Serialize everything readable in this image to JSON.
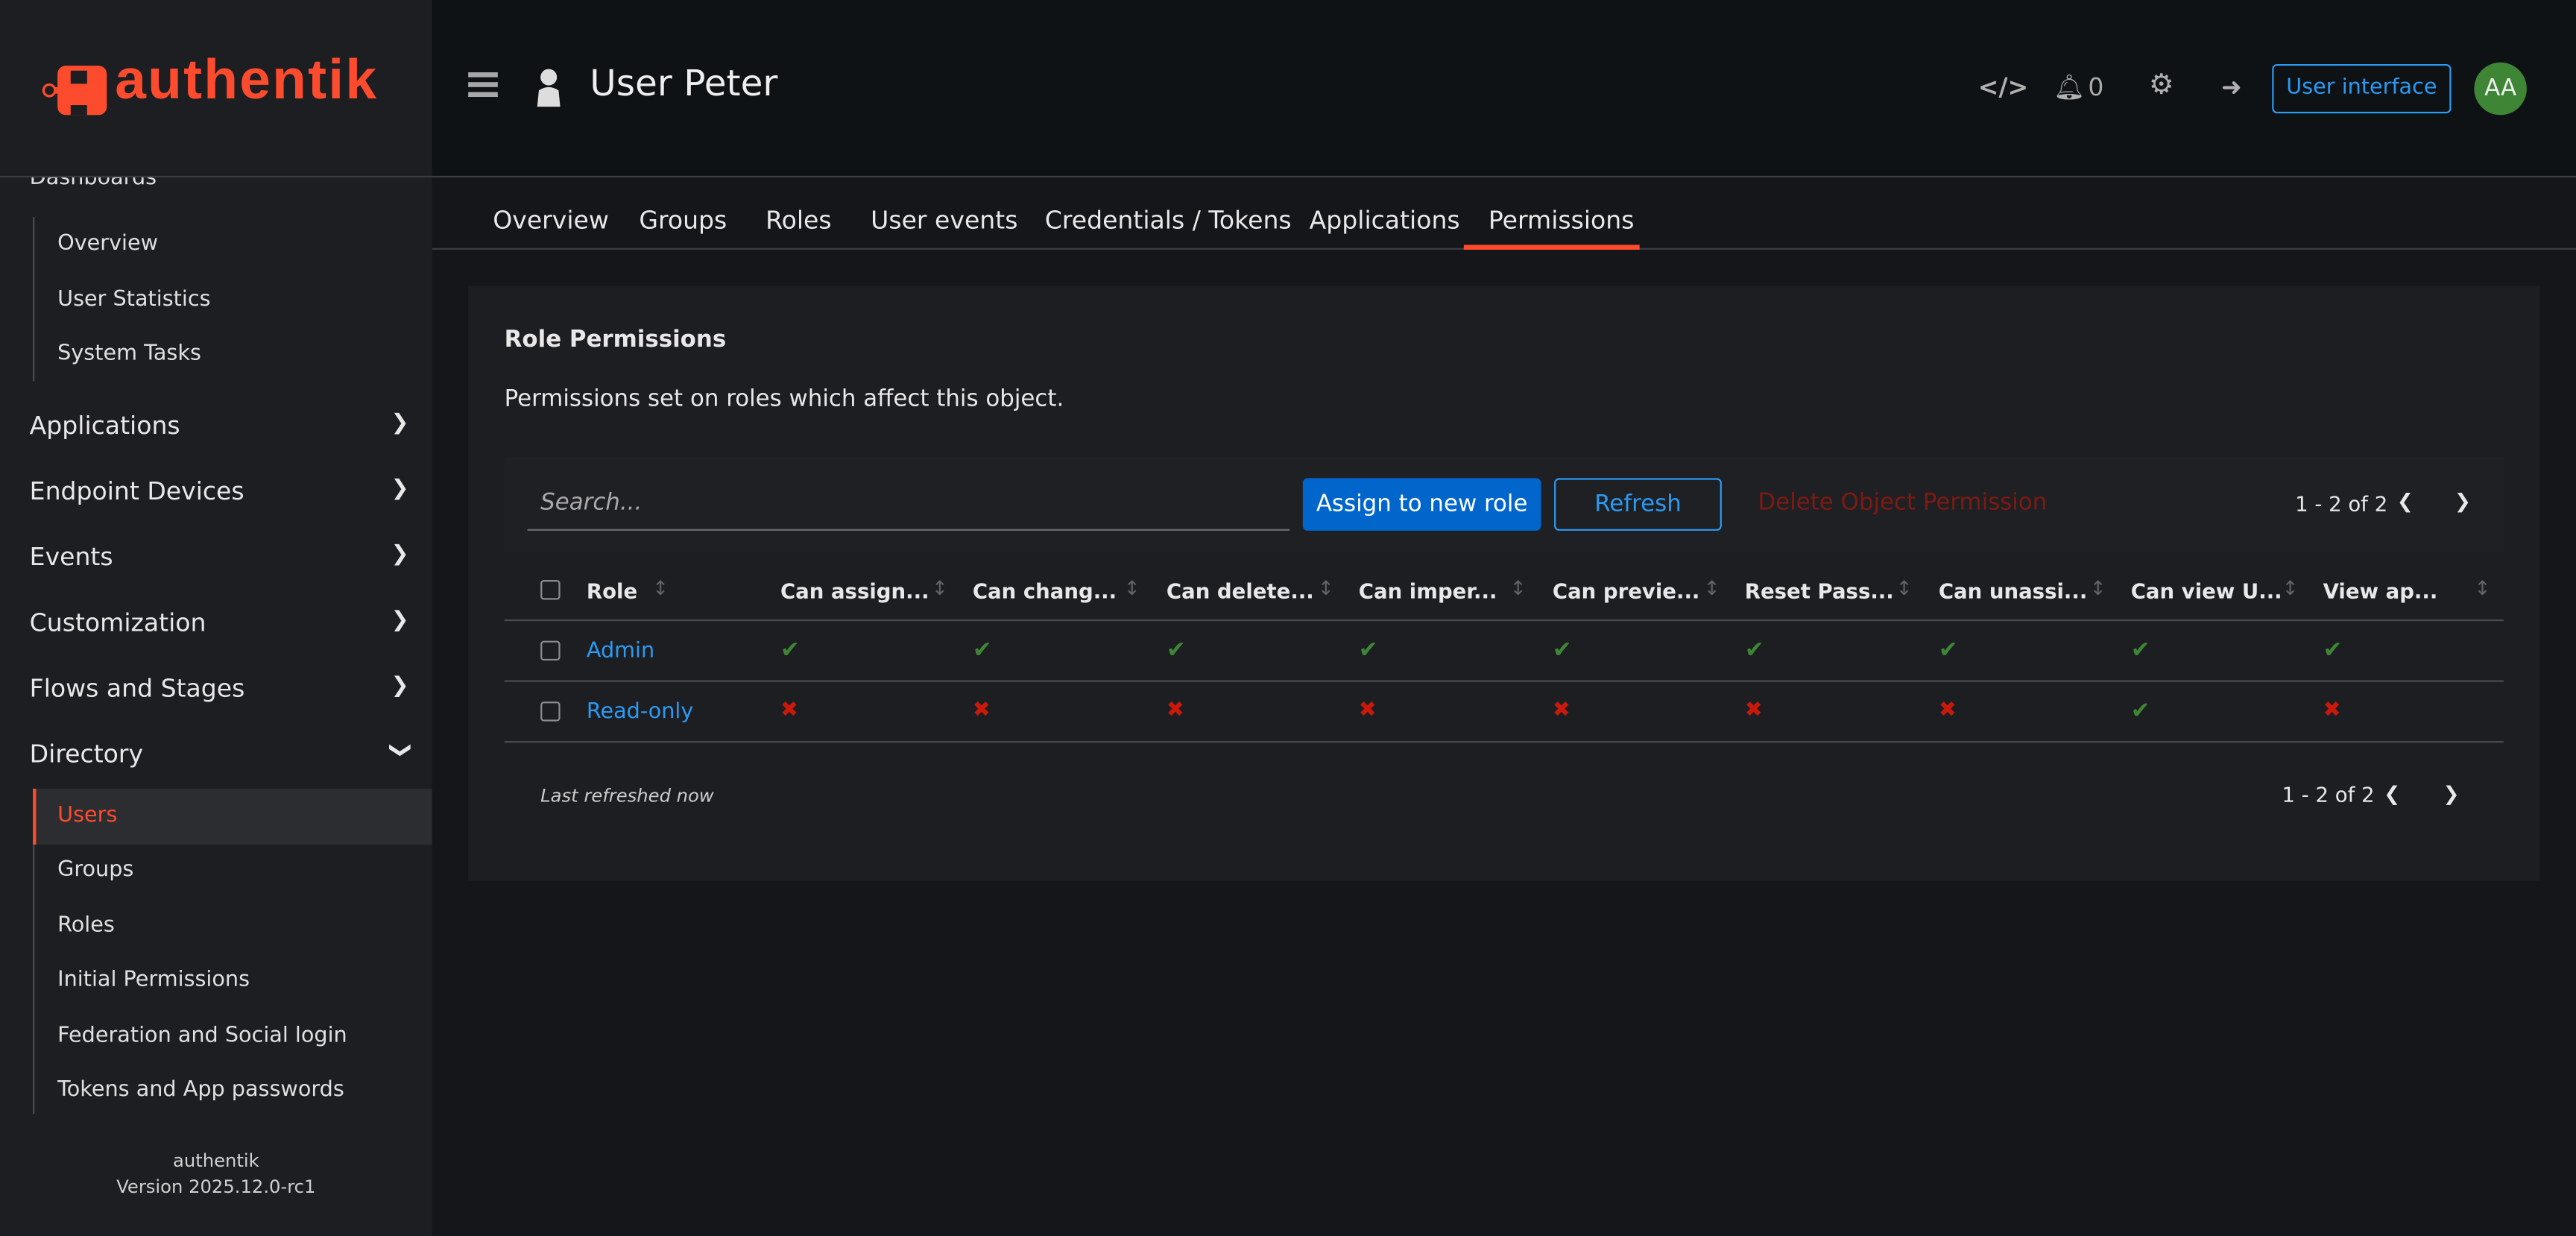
{
  "brand": {
    "logo_text": "authentik",
    "accent": "#fd4b2d"
  },
  "header": {
    "title": "User Peter",
    "notification_count": "0",
    "user_interface_label": "User interface",
    "avatar_initials": "AA",
    "icons": [
      "menu-icon",
      "user-icon",
      "code-icon",
      "bell-icon",
      "gear-icon",
      "logout-icon"
    ]
  },
  "sidebar": {
    "dashboards_items": [
      "Overview",
      "User Statistics",
      "System Tasks"
    ],
    "sections": [
      "Applications",
      "Endpoint Devices",
      "Events",
      "Customization",
      "Flows and Stages",
      "Directory"
    ],
    "directory_items": [
      "Users",
      "Groups",
      "Roles",
      "Initial Permissions",
      "Federation and Social login",
      "Tokens and App passwords"
    ],
    "active_item": "Users",
    "footer": {
      "name": "authentik",
      "version": "Version 2025.12.0-rc1"
    }
  },
  "tabs": {
    "items": [
      "Overview",
      "Groups",
      "Roles",
      "User events",
      "Credentials / Tokens",
      "Applications",
      "Permissions"
    ],
    "active": "Permissions"
  },
  "card": {
    "title": "Role Permissions",
    "description": "Permissions set on roles which affect this object.",
    "search_placeholder": "Search...",
    "assign_label": "Assign to new role",
    "refresh_label": "Refresh",
    "delete_label": "Delete Object Permission",
    "pagination": "1 - 2 of 2",
    "last_refreshed": "Last refreshed now",
    "columns": [
      "Role",
      "Can assign...",
      "Can chang...",
      "Can delete...",
      "Can imper...",
      "Can previe...",
      "Reset Pass...",
      "Can unassi...",
      "Can view U...",
      "View ap..."
    ],
    "rows": [
      {
        "role": "Admin",
        "perms": [
          true,
          true,
          true,
          true,
          true,
          true,
          true,
          true,
          true
        ]
      },
      {
        "role": "Read-only",
        "perms": [
          false,
          false,
          false,
          false,
          false,
          false,
          false,
          true,
          false
        ]
      }
    ]
  }
}
